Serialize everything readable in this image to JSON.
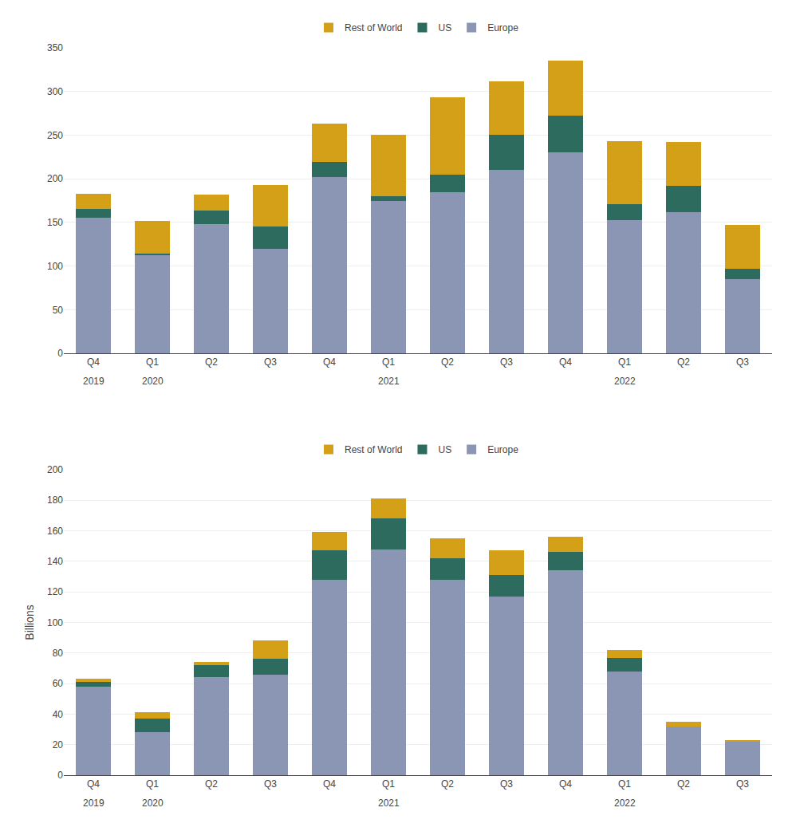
{
  "chart_data": [
    {
      "type": "bar",
      "stacked": true,
      "grid": true,
      "legend": "top",
      "categories": [
        "Q4",
        "Q1",
        "Q2",
        "Q3",
        "Q4",
        "Q1",
        "Q2",
        "Q3",
        "Q4",
        "Q1",
        "Q2",
        "Q3"
      ],
      "series": [
        {
          "name": "Europe",
          "color": "#8b96b5",
          "values": [
            155,
            112,
            148,
            120,
            202,
            175,
            185,
            210,
            230,
            153,
            162,
            85
          ]
        },
        {
          "name": "US",
          "color": "#2d6b5e",
          "values": [
            10,
            2,
            16,
            25,
            17,
            5,
            20,
            40,
            42,
            18,
            30,
            12
          ]
        },
        {
          "name": "Rest of World",
          "color": "#d4a017",
          "values": [
            18,
            38,
            18,
            48,
            44,
            70,
            88,
            62,
            63,
            72,
            50,
            50
          ]
        }
      ],
      "ylim": [
        0,
        350
      ],
      "yticks": [
        0,
        50,
        100,
        150,
        200,
        250,
        300,
        350
      ],
      "annotations": [
        {
          "text": "2019",
          "x": 0
        },
        {
          "text": "2020",
          "x": 1
        },
        {
          "text": "2021",
          "x": 5
        },
        {
          "text": "2022",
          "x": 9
        }
      ]
    },
    {
      "type": "bar",
      "stacked": true,
      "grid": true,
      "legend": "top",
      "y_label": "Billions",
      "categories": [
        "Q4",
        "Q1",
        "Q2",
        "Q3",
        "Q4",
        "Q1",
        "Q2",
        "Q3",
        "Q4",
        "Q1",
        "Q2",
        "Q3"
      ],
      "series": [
        {
          "name": "Europe",
          "color": "#8b96b5",
          "values": [
            58,
            28,
            64,
            66,
            128,
            148,
            128,
            117,
            134,
            68,
            32,
            22
          ]
        },
        {
          "name": "US",
          "color": "#2d6b5e",
          "values": [
            3,
            9,
            8,
            10,
            19,
            20,
            14,
            14,
            12,
            9,
            0,
            0
          ]
        },
        {
          "name": "Rest of World",
          "color": "#d4a017",
          "values": [
            2,
            4,
            2,
            12,
            12,
            13,
            13,
            16,
            10,
            5,
            3,
            1
          ]
        }
      ],
      "ylim": [
        0,
        200
      ],
      "yticks": [
        0,
        20,
        40,
        60,
        80,
        100,
        120,
        140,
        160,
        180,
        200
      ],
      "annotations": [
        {
          "text": "2019",
          "x": 0
        },
        {
          "text": "2020",
          "x": 1
        },
        {
          "text": "2021",
          "x": 5
        },
        {
          "text": "2022",
          "x": 9
        }
      ]
    }
  ]
}
